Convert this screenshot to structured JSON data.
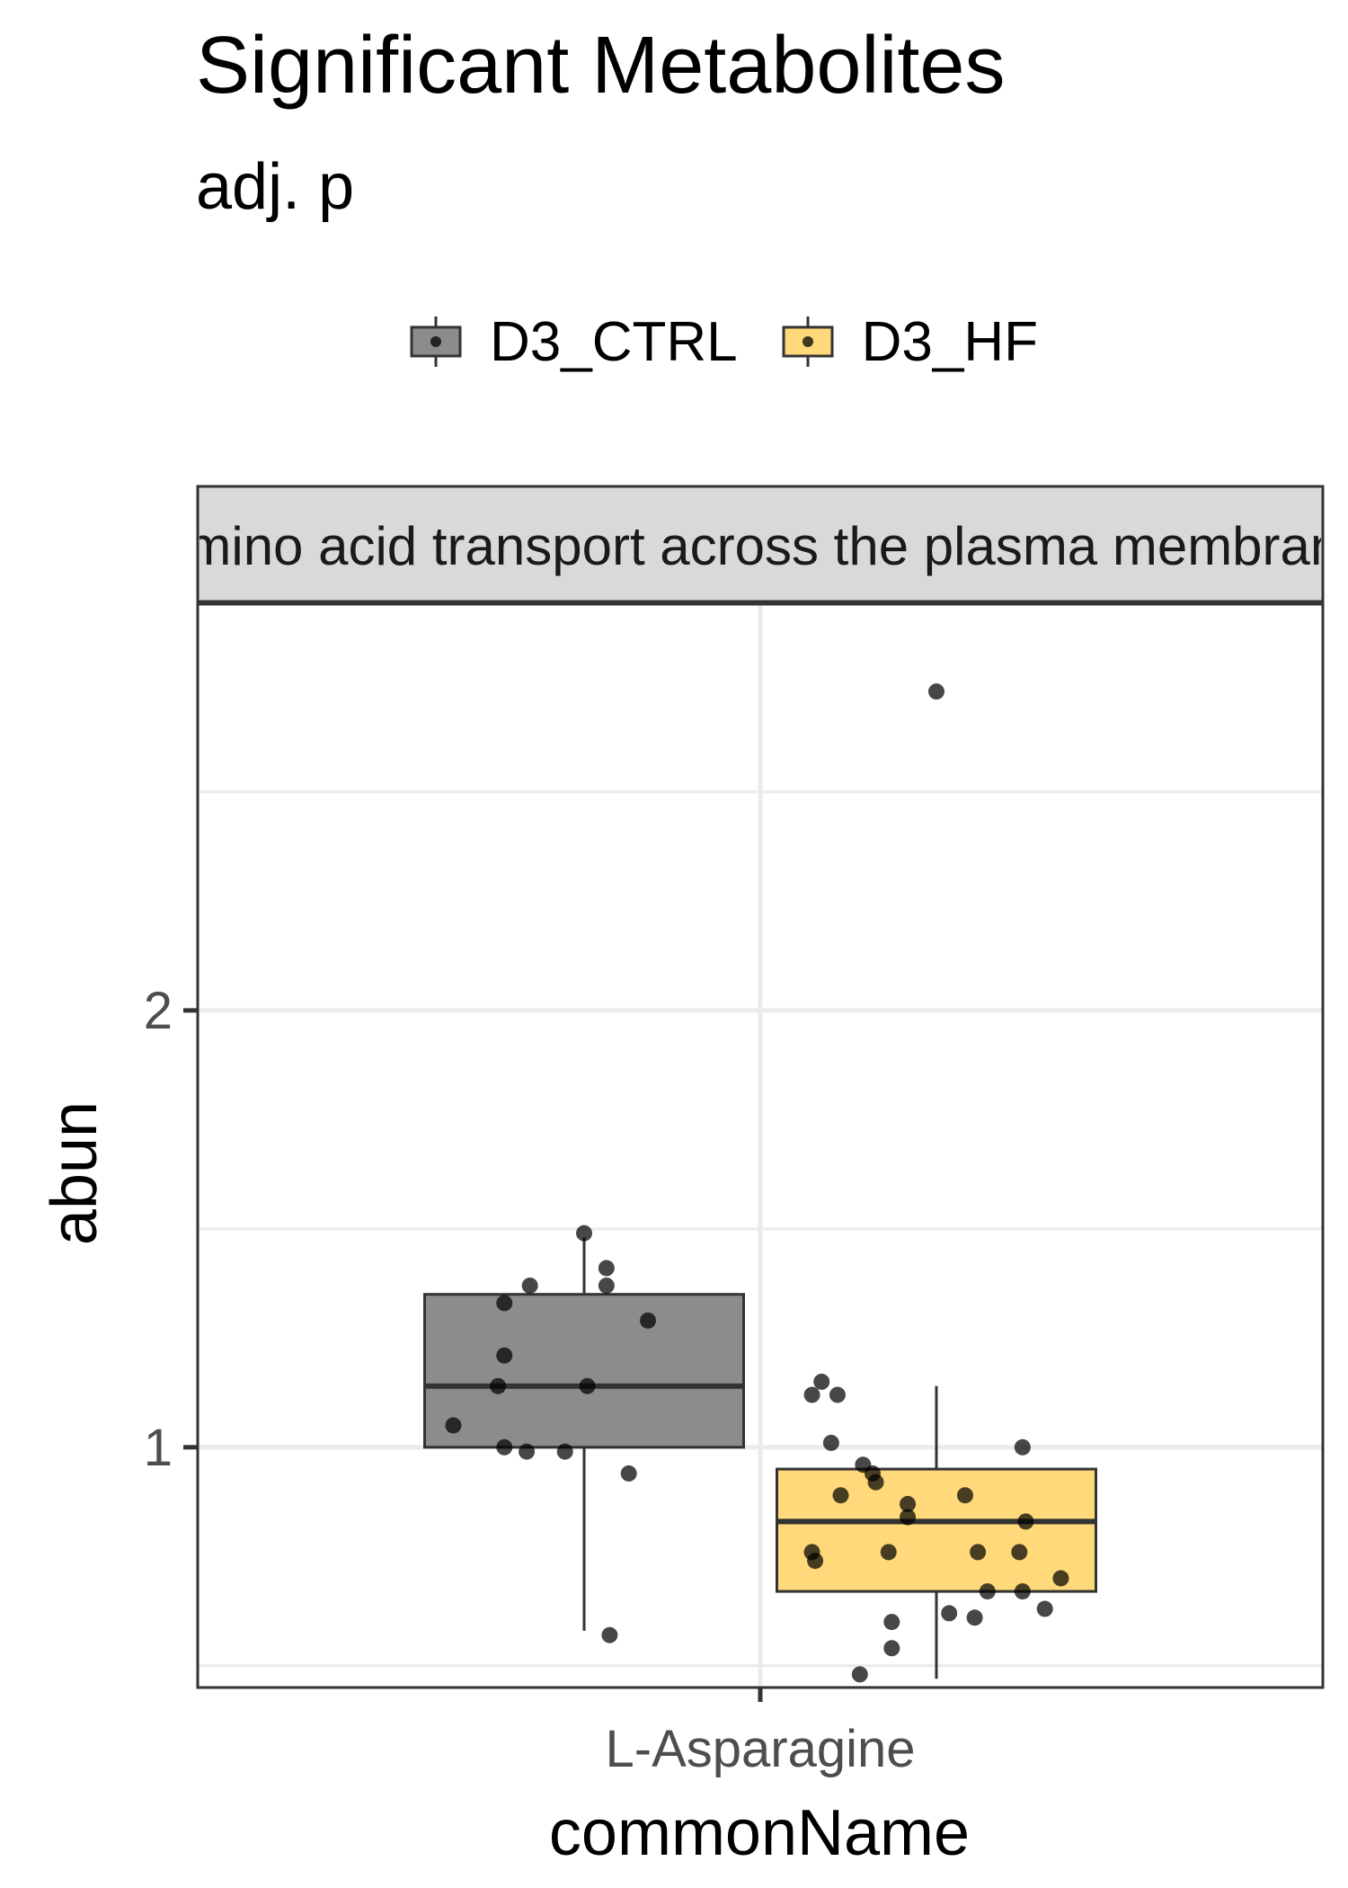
{
  "chart_data": {
    "type": "box",
    "title": "Significant Metabolites",
    "subtitle": "adj. p",
    "facet_label": "Amino acid transport across the plasma membrane",
    "xlabel": "commonName",
    "ylabel": "abun",
    "categories": [
      "L-Asparagine"
    ],
    "ylim": [
      0.45,
      2.93
    ],
    "yticks": [
      1,
      2
    ],
    "grid": true,
    "legend_position": "top",
    "series": [
      {
        "name": "D3_CTRL",
        "color": "#8c8c8c",
        "box": {
          "whisker_low": 0.58,
          "q1": 1.0,
          "median": 1.14,
          "q3": 1.35,
          "whisker_high": 1.48
        },
        "points": [
          {
            "dx": 0.0,
            "y": 1.49
          },
          {
            "dx": 0.07,
            "y": 1.41
          },
          {
            "dx": -0.17,
            "y": 1.37
          },
          {
            "dx": 0.07,
            "y": 1.37
          },
          {
            "dx": -0.25,
            "y": 1.33
          },
          {
            "dx": 0.2,
            "y": 1.29
          },
          {
            "dx": -0.25,
            "y": 1.21
          },
          {
            "dx": -0.27,
            "y": 1.14
          },
          {
            "dx": 0.01,
            "y": 1.14
          },
          {
            "dx": -0.41,
            "y": 1.05
          },
          {
            "dx": -0.25,
            "y": 1.0
          },
          {
            "dx": -0.18,
            "y": 0.99
          },
          {
            "dx": -0.06,
            "y": 0.99
          },
          {
            "dx": 0.14,
            "y": 0.94
          },
          {
            "dx": 0.08,
            "y": 0.57
          }
        ]
      },
      {
        "name": "D3_HF",
        "color": "#ffd97a",
        "box": {
          "whisker_low": 0.47,
          "q1": 0.67,
          "median": 0.83,
          "q3": 0.95,
          "whisker_high": 1.14
        },
        "points": [
          {
            "dx": 0.0,
            "y": 2.73
          },
          {
            "dx": -0.36,
            "y": 1.15
          },
          {
            "dx": -0.39,
            "y": 1.12
          },
          {
            "dx": -0.31,
            "y": 1.12
          },
          {
            "dx": -0.33,
            "y": 1.01
          },
          {
            "dx": 0.27,
            "y": 1.0
          },
          {
            "dx": -0.23,
            "y": 0.96
          },
          {
            "dx": -0.2,
            "y": 0.94
          },
          {
            "dx": -0.19,
            "y": 0.92
          },
          {
            "dx": -0.3,
            "y": 0.89
          },
          {
            "dx": 0.09,
            "y": 0.89
          },
          {
            "dx": -0.09,
            "y": 0.87
          },
          {
            "dx": -0.09,
            "y": 0.84
          },
          {
            "dx": 0.28,
            "y": 0.83
          },
          {
            "dx": -0.39,
            "y": 0.76
          },
          {
            "dx": -0.15,
            "y": 0.76
          },
          {
            "dx": 0.13,
            "y": 0.76
          },
          {
            "dx": 0.26,
            "y": 0.76
          },
          {
            "dx": -0.38,
            "y": 0.74
          },
          {
            "dx": 0.39,
            "y": 0.7
          },
          {
            "dx": 0.16,
            "y": 0.67
          },
          {
            "dx": 0.27,
            "y": 0.67
          },
          {
            "dx": 0.34,
            "y": 0.63
          },
          {
            "dx": 0.04,
            "y": 0.62
          },
          {
            "dx": 0.12,
            "y": 0.61
          },
          {
            "dx": -0.14,
            "y": 0.6
          },
          {
            "dx": -0.14,
            "y": 0.54
          },
          {
            "dx": -0.24,
            "y": 0.48
          }
        ]
      }
    ]
  }
}
